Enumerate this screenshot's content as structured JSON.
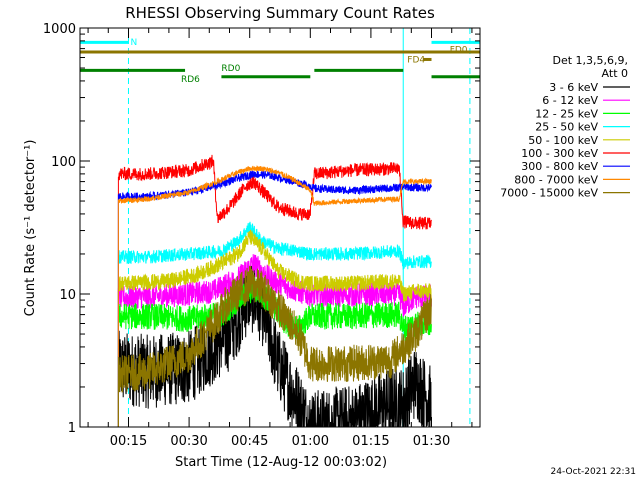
{
  "chart_data": {
    "type": "line",
    "title": "RHESSI Observing Summary Count Rates",
    "xlabel": "Start Time (12-Aug-12 00:03:02)",
    "ylabel": "Count Rate (s⁻¹ detector⁻¹)",
    "y_scale": "log",
    "ylim": [
      1,
      1000
    ],
    "xlim_minutes": [
      3,
      102
    ],
    "y_ticks": [
      {
        "value": 1,
        "label": "1"
      },
      {
        "value": 10,
        "label": "10"
      },
      {
        "value": 100,
        "label": "100"
      },
      {
        "value": 1000,
        "label": "1000"
      }
    ],
    "x_ticks": [
      {
        "value": 15,
        "label": "00:15"
      },
      {
        "value": 30,
        "label": "00:30"
      },
      {
        "value": 45,
        "label": "00:45"
      },
      {
        "value": 60,
        "label": "01:00"
      },
      {
        "value": 75,
        "label": "01:15"
      },
      {
        "value": 90,
        "label": "01:30"
      }
    ],
    "legend_header": [
      "Det 1,3,5,6,9,",
      "Att 0"
    ],
    "legend_position": "right",
    "timestamp": "24-Oct-2021 22:31",
    "data_gaps_minutes": [
      [
        3,
        12.5
      ],
      [
        60,
        60.1
      ],
      [
        83,
        83.1
      ],
      [
        90,
        102
      ]
    ],
    "series": [
      {
        "name": "3 - 6 keV",
        "color": "#000000",
        "points": [
          [
            12.5,
            2.8
          ],
          [
            20,
            2.6
          ],
          [
            30,
            2.8
          ],
          [
            40,
            5
          ],
          [
            45,
            10
          ],
          [
            48,
            8
          ],
          [
            52,
            3
          ],
          [
            60,
            1
          ],
          [
            70,
            1.1
          ],
          [
            80,
            1.5
          ],
          [
            83,
            1.5
          ],
          [
            86,
            2.2
          ],
          [
            90,
            1.5
          ]
        ]
      },
      {
        "name": "6 - 12 keV",
        "color": "#ff00ff",
        "points": [
          [
            12.5,
            9.5
          ],
          [
            20,
            9.5
          ],
          [
            30,
            10
          ],
          [
            36,
            10.5
          ],
          [
            42,
            13
          ],
          [
            46,
            17
          ],
          [
            50,
            13
          ],
          [
            55,
            11
          ],
          [
            60,
            9.8
          ],
          [
            70,
            9.8
          ],
          [
            82,
            10
          ],
          [
            83,
            8
          ],
          [
            86,
            9.5
          ],
          [
            90,
            9.5
          ]
        ]
      },
      {
        "name": "12 - 25 keV",
        "color": "#00ff00",
        "points": [
          [
            12.5,
            6.8
          ],
          [
            20,
            6.8
          ],
          [
            30,
            6.5
          ],
          [
            38,
            7
          ],
          [
            42,
            9
          ],
          [
            46,
            11
          ],
          [
            50,
            9
          ],
          [
            54,
            6
          ],
          [
            57,
            5.5
          ],
          [
            60,
            6.8
          ],
          [
            70,
            6.8
          ],
          [
            82,
            7
          ],
          [
            83,
            5.5
          ],
          [
            86,
            6
          ],
          [
            90,
            6
          ]
        ]
      },
      {
        "name": "25 - 50 keV",
        "color": "#00ffff",
        "points": [
          [
            12.5,
            19
          ],
          [
            20,
            19
          ],
          [
            30,
            20
          ],
          [
            38,
            21
          ],
          [
            42,
            25
          ],
          [
            45,
            32
          ],
          [
            48,
            25
          ],
          [
            52,
            22
          ],
          [
            57,
            21
          ],
          [
            60,
            20
          ],
          [
            70,
            20
          ],
          [
            82,
            21
          ],
          [
            83,
            17
          ],
          [
            86,
            17.5
          ],
          [
            90,
            17.5
          ]
        ]
      },
      {
        "name": "50 - 100 keV",
        "color": "#cccc00",
        "points": [
          [
            12.5,
            12
          ],
          [
            25,
            12.5
          ],
          [
            32,
            14
          ],
          [
            38,
            17
          ],
          [
            42,
            20
          ],
          [
            45,
            27
          ],
          [
            48,
            22
          ],
          [
            52,
            15
          ],
          [
            57,
            12.5
          ],
          [
            60,
            12
          ],
          [
            70,
            12
          ],
          [
            82,
            12.5
          ],
          [
            83,
            10
          ],
          [
            86,
            10.5
          ],
          [
            90,
            10.5
          ]
        ]
      },
      {
        "name": "100 - 300 keV",
        "color": "#ff0000",
        "points": [
          [
            12.5,
            80
          ],
          [
            20,
            80
          ],
          [
            30,
            85
          ],
          [
            36,
            100
          ],
          [
            37,
            37
          ],
          [
            40,
            45
          ],
          [
            44,
            65
          ],
          [
            46,
            70
          ],
          [
            48,
            60
          ],
          [
            52,
            45
          ],
          [
            57,
            40
          ],
          [
            59,
            40
          ],
          [
            60,
            40
          ],
          [
            61,
            80
          ],
          [
            70,
            85
          ],
          [
            82,
            88
          ],
          [
            83,
            35
          ],
          [
            86,
            34
          ],
          [
            90,
            34
          ]
        ]
      },
      {
        "name": "300 - 800 keV",
        "color": "#0000ff",
        "points": [
          [
            12.5,
            54
          ],
          [
            20,
            54
          ],
          [
            30,
            58
          ],
          [
            37,
            66
          ],
          [
            42,
            74
          ],
          [
            46,
            80
          ],
          [
            50,
            78
          ],
          [
            56,
            70
          ],
          [
            60,
            65
          ],
          [
            61,
            62
          ],
          [
            70,
            60
          ],
          [
            82,
            63
          ],
          [
            83,
            64
          ],
          [
            86,
            63
          ],
          [
            90,
            63
          ]
        ]
      },
      {
        "name": "800 - 7000 keV",
        "color": "#ff8800",
        "points": [
          [
            12.5,
            50
          ],
          [
            20,
            52
          ],
          [
            30,
            58
          ],
          [
            37,
            70
          ],
          [
            42,
            82
          ],
          [
            45,
            88
          ],
          [
            48,
            88
          ],
          [
            52,
            82
          ],
          [
            56,
            72
          ],
          [
            60,
            60
          ],
          [
            61,
            48
          ],
          [
            70,
            50
          ],
          [
            82,
            52
          ],
          [
            83,
            70
          ],
          [
            86,
            70
          ],
          [
            90,
            70
          ]
        ]
      },
      {
        "name": "7000 - 15000 keV",
        "color": "#8b7500",
        "points": [
          [
            12.5,
            2.5
          ],
          [
            20,
            2.6
          ],
          [
            30,
            3.5
          ],
          [
            36,
            6
          ],
          [
            40,
            9
          ],
          [
            45,
            12
          ],
          [
            48,
            11
          ],
          [
            52,
            8
          ],
          [
            57,
            5
          ],
          [
            60,
            3
          ],
          [
            70,
            3
          ],
          [
            80,
            3.2
          ],
          [
            83,
            4
          ],
          [
            86,
            5
          ],
          [
            90,
            8
          ]
        ]
      }
    ],
    "annotations": [
      {
        "label": "N",
        "color": "#00ffff",
        "t0": 3,
        "t1": 15,
        "y": 780
      },
      {
        "label": "RD0",
        "color": "#008000",
        "t0": 3,
        "t1": 29,
        "y": 480
      },
      {
        "label": "RD0",
        "color": "#008000",
        "t0": 61,
        "t1": 83,
        "y": 480
      },
      {
        "label": "RD6",
        "color": "#008000",
        "t0": 38,
        "t1": 60,
        "y": 430
      },
      {
        "label": "RD6",
        "color": "#008000",
        "t0": 90,
        "t1": 102,
        "y": 430
      },
      {
        "label": "FD0",
        "color": "#8b7500",
        "t0": 3,
        "t1": 102,
        "y": 660
      },
      {
        "label": "FD4",
        "color": "#8b7500",
        "t0": 88,
        "t1": 90,
        "y": 580
      },
      {
        "label": "",
        "color": "#00ffff",
        "t0": 90,
        "t1": 102,
        "y": 780
      }
    ],
    "annotation_labels": [
      {
        "text": "N",
        "color": "#00ffff",
        "t": 15.5,
        "y": 800
      },
      {
        "text": "RD0",
        "color": "#008000",
        "t": 38,
        "y": 510
      },
      {
        "text": "RD6",
        "color": "#008000",
        "t": 28,
        "y": 420
      },
      {
        "text": "FD0",
        "color": "#8b7500",
        "t": 94.5,
        "y": 700
      },
      {
        "text": "FD4",
        "color": "#8b7500",
        "t": 84,
        "y": 590
      }
    ],
    "vertical_markers": [
      {
        "t": 3,
        "color": "#00ffff",
        "style": "solid"
      },
      {
        "t": 15,
        "color": "#00ffff",
        "style": "dashed"
      },
      {
        "t": 83,
        "color": "#00ffff",
        "style": "solid"
      },
      {
        "t": 99.5,
        "color": "#00ffff",
        "style": "dashed"
      }
    ]
  }
}
